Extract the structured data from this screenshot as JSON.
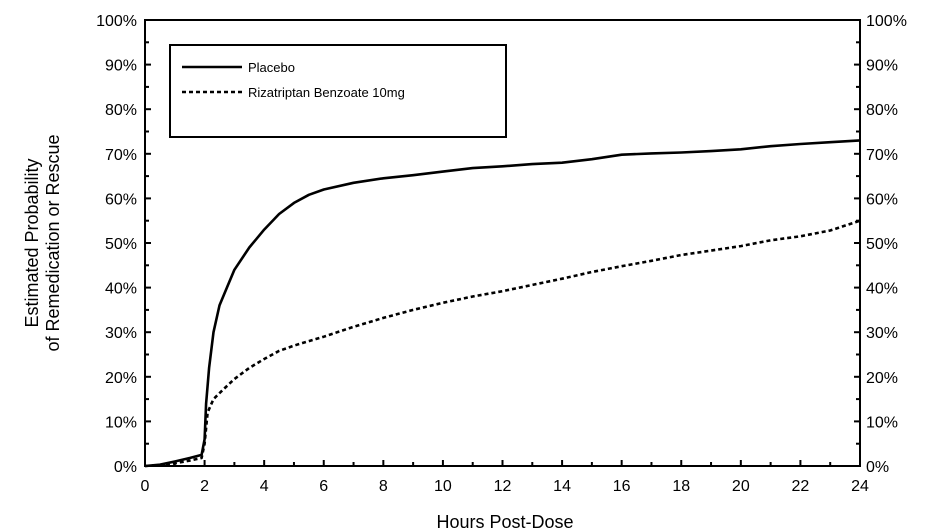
{
  "chart_data": {
    "type": "line",
    "xlabel": "Hours Post-Dose",
    "ylabel_lines": [
      "Estimated Probability",
      "of Remedication or Rescue"
    ],
    "xlim": [
      0,
      24
    ],
    "ylim": [
      0,
      100
    ],
    "x_ticks": [
      0,
      2,
      4,
      6,
      8,
      10,
      12,
      14,
      16,
      18,
      20,
      22,
      24
    ],
    "x_tick_labels": [
      "0",
      "2",
      "4",
      "6",
      "8",
      "10",
      "12",
      "14",
      "16",
      "18",
      "20",
      "22",
      "24"
    ],
    "y_ticks": [
      0,
      10,
      20,
      30,
      40,
      50,
      60,
      70,
      80,
      90,
      100
    ],
    "y_tick_labels": [
      "0%",
      "10%",
      "20%",
      "30%",
      "40%",
      "50%",
      "60%",
      "70%",
      "80%",
      "90%",
      "100%"
    ],
    "y_tick_labels_right": [
      "0%",
      "10%",
      "20%",
      "30%",
      "40%",
      "50%",
      "60%",
      "70%",
      "80%",
      "90%",
      "100%"
    ],
    "grid": false,
    "legend_position": "top-left",
    "series": [
      {
        "name": "Placebo",
        "style": "solid",
        "color": "#000000",
        "x": [
          0,
          0.5,
          1.0,
          1.5,
          1.9,
          2.0,
          2.05,
          2.15,
          2.3,
          2.5,
          2.75,
          3.0,
          3.5,
          4.0,
          4.5,
          5.0,
          5.5,
          6.0,
          7.0,
          8.0,
          9.0,
          10.0,
          11.0,
          12.0,
          13.0,
          14.0,
          15.0,
          16.0,
          17.0,
          18.0,
          19.0,
          20.0,
          21.0,
          22.0,
          23.0,
          24.0
        ],
        "values": [
          0,
          0.3,
          1.0,
          1.8,
          2.5,
          6.0,
          14.0,
          22.0,
          30.0,
          36.0,
          40.0,
          44.0,
          49.0,
          53.0,
          56.5,
          59.0,
          60.8,
          62.0,
          63.5,
          64.5,
          65.2,
          66.0,
          66.8,
          67.2,
          67.7,
          68.0,
          68.8,
          69.8,
          70.1,
          70.3,
          70.6,
          71.0,
          71.7,
          72.2,
          72.6,
          73.0
        ]
      },
      {
        "name": "Rizatriptan Benzoate 10mg",
        "style": "dashed",
        "color": "#000000",
        "x": [
          0,
          0.5,
          1.0,
          1.5,
          1.9,
          2.0,
          2.1,
          2.3,
          2.6,
          3.0,
          3.5,
          4.0,
          4.5,
          5.0,
          5.5,
          6.0,
          7.0,
          8.0,
          9.0,
          10.0,
          11.0,
          12.0,
          13.0,
          14.0,
          15.0,
          16.0,
          17.0,
          18.0,
          19.0,
          20.0,
          21.0,
          22.0,
          23.0,
          24.0
        ],
        "values": [
          0,
          0.2,
          0.6,
          1.2,
          1.8,
          5.0,
          12.0,
          15.0,
          17.0,
          19.5,
          22.0,
          24.0,
          25.8,
          27.0,
          28.0,
          29.0,
          31.2,
          33.2,
          35.0,
          36.6,
          38.0,
          39.2,
          40.6,
          42.0,
          43.5,
          44.8,
          46.0,
          47.3,
          48.3,
          49.3,
          50.6,
          51.5,
          52.8,
          55.0
        ]
      }
    ]
  }
}
